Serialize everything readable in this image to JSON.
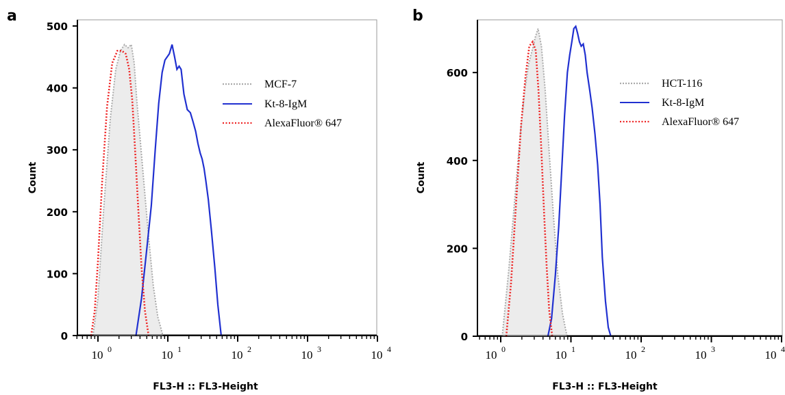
{
  "chart_data": [
    {
      "type": "line",
      "panel": "a",
      "xlabel": "FL3-H :: FL3-Height",
      "ylabel": "Count",
      "x_scale": "log",
      "xlim": [
        0.3,
        10000
      ],
      "ylim": [
        0,
        510
      ],
      "yticks": [
        0,
        100,
        200,
        300,
        400,
        500
      ],
      "xticks": [
        1,
        10,
        100,
        1000,
        10000
      ],
      "xtick_labels": [
        {
          "base": "10",
          "exp": "0"
        },
        {
          "base": "10",
          "exp": "1"
        },
        {
          "base": "10",
          "exp": "2"
        },
        {
          "base": "10",
          "exp": "3"
        },
        {
          "base": "10",
          "exp": "4"
        }
      ],
      "legend_position": "top-right",
      "series": [
        {
          "name": "MCF-7",
          "color": "#aaaaaa",
          "style": "dotted-filled",
          "points": [
            [
              0.85,
              0
            ],
            [
              1.0,
              60
            ],
            [
              1.2,
              200
            ],
            [
              1.5,
              350
            ],
            [
              1.8,
              430
            ],
            [
              2.1,
              460
            ],
            [
              2.4,
              470
            ],
            [
              2.7,
              465
            ],
            [
              3.0,
              470
            ],
            [
              3.3,
              440
            ],
            [
              3.6,
              380
            ],
            [
              4.0,
              320
            ],
            [
              4.6,
              240
            ],
            [
              5.3,
              160
            ],
            [
              6.2,
              80
            ],
            [
              7.2,
              30
            ],
            [
              8.5,
              0
            ]
          ]
        },
        {
          "name": "Kt-8-IgM",
          "color": "#2030d0",
          "style": "solid",
          "points": [
            [
              3.5,
              0
            ],
            [
              4.2,
              60
            ],
            [
              5.0,
              140
            ],
            [
              5.8,
              210
            ],
            [
              6.6,
              300
            ],
            [
              7.4,
              375
            ],
            [
              8.3,
              425
            ],
            [
              9.1,
              445
            ],
            [
              10.5,
              455
            ],
            [
              11.5,
              470
            ],
            [
              12.5,
              450
            ],
            [
              13.5,
              430
            ],
            [
              14.5,
              435
            ],
            [
              15.5,
              430
            ],
            [
              17.0,
              390
            ],
            [
              19.0,
              365
            ],
            [
              21.0,
              360
            ],
            [
              23.0,
              345
            ],
            [
              25.0,
              330
            ],
            [
              27.0,
              310
            ],
            [
              29.0,
              295
            ],
            [
              31.0,
              285
            ],
            [
              33.0,
              270
            ],
            [
              35.0,
              250
            ],
            [
              38.0,
              220
            ],
            [
              42.0,
              170
            ],
            [
              47.0,
              110
            ],
            [
              52.0,
              50
            ],
            [
              58.0,
              0
            ]
          ]
        },
        {
          "name": "AlexaFluor® 647",
          "color": "#ee2222",
          "style": "dotted",
          "points": [
            [
              0.8,
              0
            ],
            [
              0.9,
              40
            ],
            [
              1.0,
              120
            ],
            [
              1.15,
              250
            ],
            [
              1.35,
              370
            ],
            [
              1.6,
              440
            ],
            [
              1.9,
              460
            ],
            [
              2.2,
              460
            ],
            [
              2.5,
              455
            ],
            [
              2.8,
              430
            ],
            [
              3.1,
              380
            ],
            [
              3.4,
              300
            ],
            [
              3.8,
              200
            ],
            [
              4.2,
              110
            ],
            [
              4.7,
              40
            ],
            [
              5.3,
              0
            ]
          ]
        }
      ]
    },
    {
      "type": "line",
      "panel": "b",
      "xlabel": "FL3-H :: FL3-Height",
      "ylabel": "Count",
      "x_scale": "log",
      "xlim": [
        0.3,
        10000
      ],
      "ylim": [
        0,
        720
      ],
      "yticks": [
        0,
        200,
        400,
        600
      ],
      "xticks": [
        1,
        10,
        100,
        1000,
        10000
      ],
      "xtick_labels": [
        {
          "base": "10",
          "exp": "0"
        },
        {
          "base": "10",
          "exp": "1"
        },
        {
          "base": "10",
          "exp": "2"
        },
        {
          "base": "10",
          "exp": "3"
        },
        {
          "base": "10",
          "exp": "4"
        }
      ],
      "legend_position": "top-right",
      "series": [
        {
          "name": "HCT-116",
          "color": "#aaaaaa",
          "style": "dotted-filled",
          "points": [
            [
              1.05,
              0
            ],
            [
              1.3,
              150
            ],
            [
              1.6,
              320
            ],
            [
              1.9,
              460
            ],
            [
              2.2,
              560
            ],
            [
              2.5,
              620
            ],
            [
              2.8,
              650
            ],
            [
              3.1,
              680
            ],
            [
              3.4,
              700
            ],
            [
              3.8,
              660
            ],
            [
              4.3,
              560
            ],
            [
              4.9,
              420
            ],
            [
              5.6,
              280
            ],
            [
              6.5,
              140
            ],
            [
              7.6,
              50
            ],
            [
              8.8,
              0
            ]
          ]
        },
        {
          "name": "Kt-8-IgM",
          "color": "#2030d0",
          "style": "solid",
          "points": [
            [
              4.7,
              0
            ],
            [
              5.3,
              40
            ],
            [
              6.0,
              140
            ],
            [
              6.7,
              250
            ],
            [
              7.4,
              380
            ],
            [
              8.1,
              500
            ],
            [
              8.9,
              600
            ],
            [
              9.6,
              640
            ],
            [
              10.3,
              670
            ],
            [
              11.0,
              700
            ],
            [
              11.7,
              705
            ],
            [
              12.4,
              690
            ],
            [
              13.2,
              670
            ],
            [
              14.0,
              660
            ],
            [
              15.0,
              665
            ],
            [
              16.0,
              640
            ],
            [
              17.0,
              600
            ],
            [
              18.5,
              560
            ],
            [
              20.0,
              520
            ],
            [
              22.0,
              460
            ],
            [
              24.0,
              390
            ],
            [
              26.0,
              300
            ],
            [
              28.0,
              180
            ],
            [
              31.0,
              80
            ],
            [
              34.0,
              20
            ],
            [
              37.0,
              0
            ]
          ]
        },
        {
          "name": "AlexaFluor® 647",
          "color": "#ee2222",
          "style": "dotted",
          "points": [
            [
              1.2,
              0
            ],
            [
              1.4,
              120
            ],
            [
              1.65,
              300
            ],
            [
              1.95,
              480
            ],
            [
              2.25,
              590
            ],
            [
              2.55,
              660
            ],
            [
              2.85,
              670
            ],
            [
              3.15,
              650
            ],
            [
              3.45,
              560
            ],
            [
              3.8,
              420
            ],
            [
              4.15,
              280
            ],
            [
              4.5,
              160
            ],
            [
              4.9,
              60
            ],
            [
              5.4,
              0
            ]
          ]
        }
      ]
    }
  ]
}
